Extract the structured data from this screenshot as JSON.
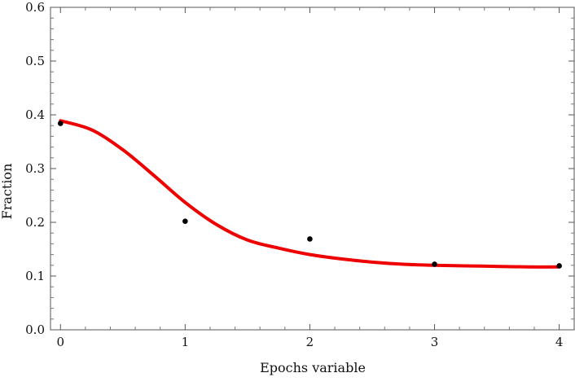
{
  "chart_data": {
    "type": "scatter",
    "title": "",
    "xlabel": "Epochs variable",
    "ylabel": "Fraction",
    "xlim": [
      -0.08,
      4.12
    ],
    "ylim": [
      0.0,
      0.6
    ],
    "x_ticks": [
      0,
      1,
      2,
      3,
      4
    ],
    "x_tick_labels": [
      "0",
      "1",
      "2",
      "3",
      "4"
    ],
    "y_ticks": [
      0.0,
      0.1,
      0.2,
      0.3,
      0.4,
      0.5,
      0.6
    ],
    "y_tick_labels": [
      "0.0",
      "0.1",
      "0.2",
      "0.3",
      "0.4",
      "0.5",
      "0.6"
    ],
    "grid": false,
    "series": [
      {
        "kind": "points",
        "color": "#000000",
        "x": [
          0,
          1,
          2,
          3,
          4
        ],
        "y": [
          0.384,
          0.202,
          0.169,
          0.122,
          0.119
        ]
      },
      {
        "kind": "fit-curve",
        "color": "#ee0000",
        "x": [
          0,
          0.25,
          0.5,
          0.75,
          1.0,
          1.25,
          1.5,
          1.75,
          2.0,
          2.25,
          2.5,
          2.75,
          3.0,
          3.25,
          3.5,
          3.75,
          4.0
        ],
        "y": [
          0.389,
          0.372,
          0.335,
          0.287,
          0.237,
          0.196,
          0.167,
          0.152,
          0.14,
          0.132,
          0.126,
          0.122,
          0.12,
          0.119,
          0.118,
          0.117,
          0.117
        ]
      }
    ]
  }
}
